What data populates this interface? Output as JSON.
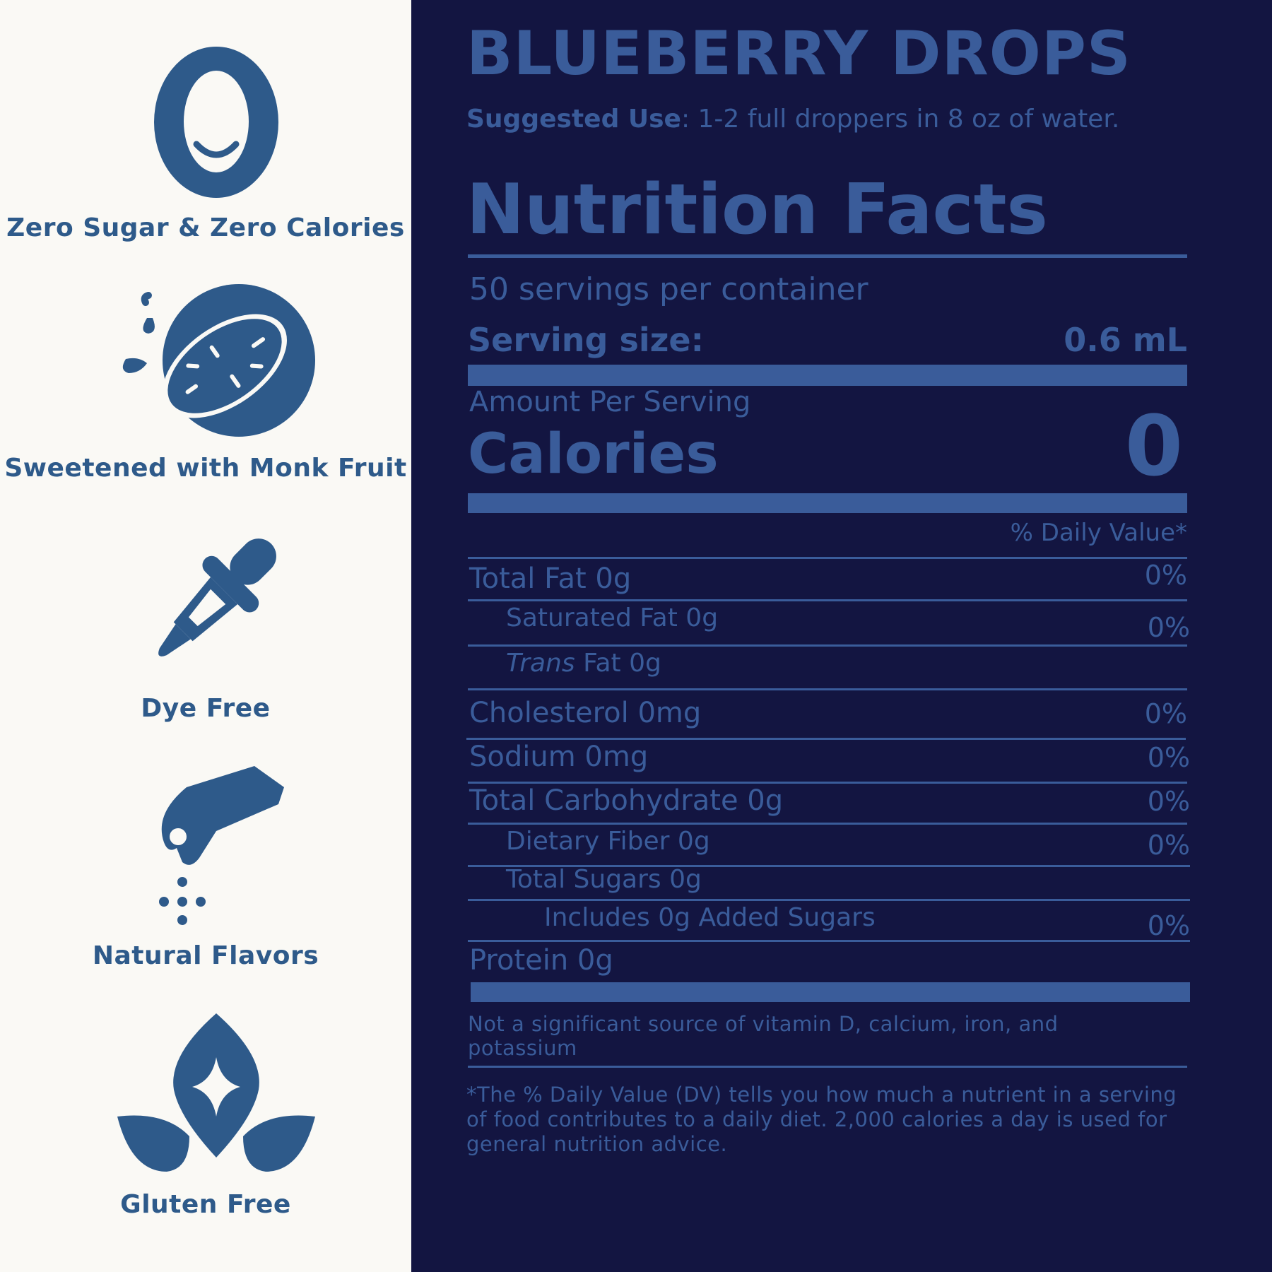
{
  "features": [
    {
      "icon": "zero-smile-icon",
      "label": "Zero Sugar & Zero Calories"
    },
    {
      "icon": "monk-fruit-icon",
      "label": "Sweetened with Monk Fruit"
    },
    {
      "icon": "dropper-icon",
      "label": "Dye Free"
    },
    {
      "icon": "pinch-hand-icon",
      "label": "Natural Flavors"
    },
    {
      "icon": "leaf-sparkle-icon",
      "label": "Gluten Free"
    }
  ],
  "product": {
    "title": "BLUEBERRY DROPS",
    "suggested_label": "Suggested Use",
    "suggested_text": ": 1-2 full droppers in 8 oz of water."
  },
  "nutrition": {
    "heading": "Nutrition Facts",
    "servings": "50 servings per container",
    "serving_size_label": "Serving size:",
    "serving_size_value": "0.6 mL",
    "amount_per_serving": "Amount Per Serving",
    "calories_label": "Calories",
    "calories_value": "0",
    "dv_header": "% Daily Value*",
    "rows": [
      {
        "label": "Total Fat 0g",
        "dv": "0%"
      },
      {
        "label": "Saturated Fat 0g",
        "dv": "0%"
      },
      {
        "label_italic": "Trans",
        "label": " Fat 0g",
        "dv": ""
      },
      {
        "label": "Cholesterol 0mg",
        "dv": "0%"
      },
      {
        "label": "Sodium 0mg",
        "dv": "0%"
      },
      {
        "label": "Total Carbohydrate 0g",
        "dv": "0%"
      },
      {
        "label": "Dietary Fiber 0g",
        "dv": "0%"
      },
      {
        "label": "Total Sugars 0g",
        "dv": ""
      },
      {
        "label": "Includes 0g Added Sugars",
        "dv": "0%"
      },
      {
        "label": "Protein 0g",
        "dv": ""
      }
    ],
    "vitamin_note": "Not a significant source of vitamin D, calcium, iron, and potassium",
    "footnote": "*The % Daily Value (DV) tells you how much a nutrient in a serving of food contributes to a daily diet. 2,000 calories a day is used for general nutrition advice."
  },
  "colors": {
    "left_bg": "#faf9f5",
    "right_bg": "#131541",
    "icon_blue": "#2e5a8a",
    "label_blue": "#3a5c9a"
  }
}
